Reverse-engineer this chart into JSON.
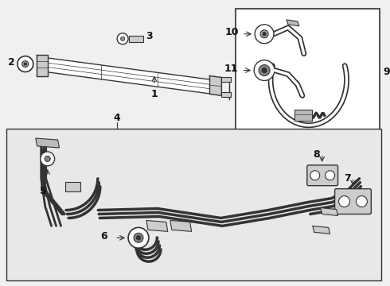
{
  "bg_color": "#f0f0f0",
  "box_bg": "#e8e8e8",
  "line_color": "#333333",
  "white": "#ffffff",
  "gray": "#aaaaaa",
  "dark_gray": "#555555",
  "font_size": 9,
  "label_color": "#111111"
}
